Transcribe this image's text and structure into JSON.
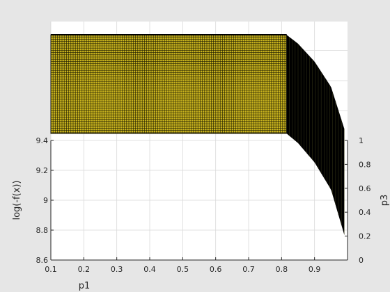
{
  "chart_data": {
    "type": "surface",
    "xlabel": "p1",
    "ylabel": "log(-f(x))",
    "y2label": "p3",
    "xlim": [
      0.1,
      1.0
    ],
    "ylim": [
      8.6,
      9.4
    ],
    "y2lim": [
      0,
      1
    ],
    "xticks": [
      "0.1",
      "0.2",
      "0.3",
      "0.4",
      "0.5",
      "0.6",
      "0.7",
      "0.8",
      "0.9"
    ],
    "yticks": [
      "8.6",
      "8.8",
      "9",
      "9.2",
      "9.4"
    ],
    "y2ticks": [
      "0",
      "0.2",
      "0.4",
      "0.6",
      "0.8",
      "1"
    ],
    "grid": true,
    "colormap": "parula",
    "surface": {
      "p3_range": [
        0,
        1
      ],
      "p1_breakpoint": 0.815,
      "profile": [
        {
          "p1": 0.1,
          "log_neg_f": 9.4
        },
        {
          "p1": 0.5,
          "log_neg_f": 9.4
        },
        {
          "p1": 0.815,
          "log_neg_f": 9.4
        },
        {
          "p1": 0.85,
          "log_neg_f": 9.34
        },
        {
          "p1": 0.9,
          "log_neg_f": 9.22
        },
        {
          "p1": 0.95,
          "log_neg_f": 9.05
        },
        {
          "p1": 0.99,
          "log_neg_f": 8.77
        }
      ]
    },
    "colors": {
      "figure_bg": "#e6e6e6",
      "axes_bg": "#ffffff",
      "surface_face": "#c8b21e",
      "surface_edge": "#000000",
      "grid": "#d9d9d9",
      "axis_line": "#262626"
    }
  }
}
